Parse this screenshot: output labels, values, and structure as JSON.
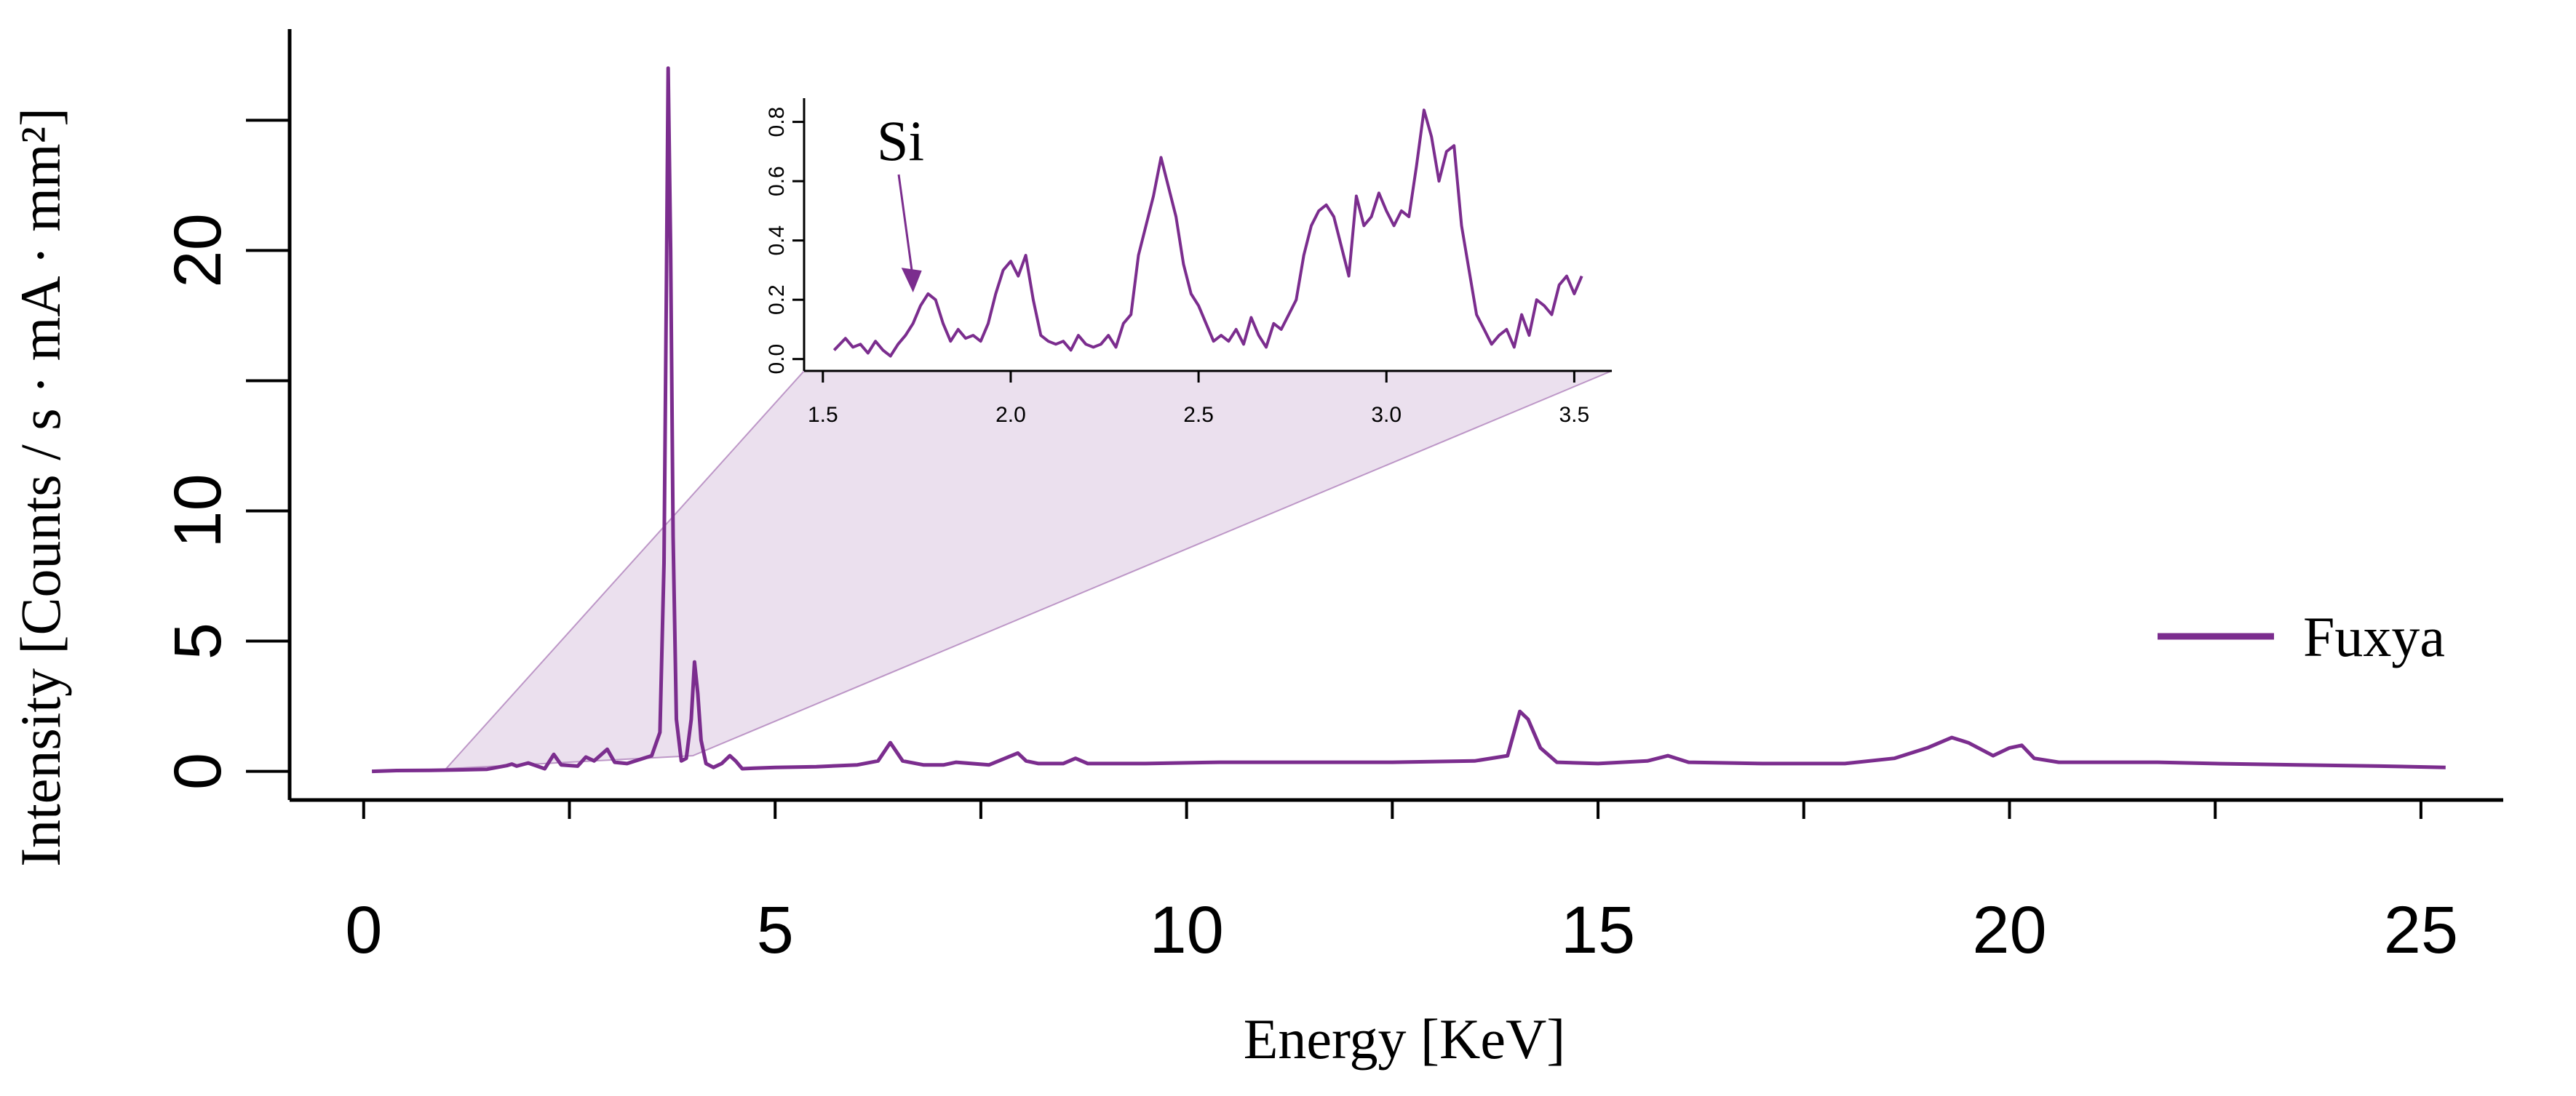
{
  "chart_data": [
    {
      "id": "main",
      "type": "line",
      "title": "",
      "xlabel": "Energy [KeV]",
      "ylabel": "Intensity [Counts / s · mA · mm²]",
      "xlim": [
        -0.9,
        26.0
      ],
      "ylim": [
        -1.1,
        28.5
      ],
      "xticks": [
        0,
        2.5,
        5,
        7.5,
        10,
        12.5,
        15,
        17.5,
        20,
        22.5,
        25
      ],
      "xtick_labels": [
        "0",
        "",
        "5",
        "",
        "10",
        "",
        "15",
        "",
        "20",
        "",
        "25"
      ],
      "yticks": [
        0,
        5,
        10,
        15,
        20,
        25
      ],
      "ytick_labels": [
        "0",
        "5",
        "10",
        "",
        "20",
        ""
      ],
      "grid": false,
      "legend": {
        "position": "right",
        "entries": [
          "Fuxya"
        ]
      },
      "series": [
        {
          "name": "Fuxya",
          "color": "#7b2d8e",
          "x": [
            0.1,
            0.4,
            0.8,
            1.2,
            1.5,
            1.74,
            1.8,
            1.86,
            2.0,
            2.2,
            2.31,
            2.4,
            2.6,
            2.7,
            2.8,
            2.96,
            3.05,
            3.2,
            3.35,
            3.5,
            3.6,
            3.65,
            3.68,
            3.7,
            3.73,
            3.76,
            3.8,
            3.86,
            3.92,
            3.98,
            4.02,
            4.06,
            4.1,
            4.16,
            4.25,
            4.35,
            4.45,
            4.52,
            4.6,
            4.75,
            5.0,
            5.5,
            6.0,
            6.25,
            6.4,
            6.55,
            6.8,
            7.05,
            7.2,
            7.6,
            7.95,
            8.05,
            8.2,
            8.5,
            8.65,
            8.8,
            9.5,
            10.4,
            10.6,
            11.5,
            12.5,
            13.5,
            13.9,
            14.05,
            14.15,
            14.3,
            14.5,
            15.0,
            15.6,
            15.85,
            16.1,
            17.0,
            18.0,
            18.6,
            19.0,
            19.3,
            19.5,
            19.8,
            20.0,
            20.15,
            20.3,
            20.6,
            21.0,
            21.8,
            22.5,
            23.5,
            24.5,
            25.3
          ],
          "y": [
            0.0,
            0.03,
            0.04,
            0.06,
            0.08,
            0.22,
            0.28,
            0.2,
            0.32,
            0.1,
            0.65,
            0.25,
            0.2,
            0.55,
            0.4,
            0.85,
            0.35,
            0.3,
            0.45,
            0.6,
            1.5,
            8.0,
            19.0,
            27.0,
            20.0,
            9.0,
            2.0,
            0.4,
            0.5,
            2.0,
            4.2,
            3.0,
            1.2,
            0.3,
            0.15,
            0.3,
            0.6,
            0.4,
            0.1,
            0.12,
            0.15,
            0.18,
            0.25,
            0.4,
            1.1,
            0.4,
            0.25,
            0.25,
            0.35,
            0.25,
            0.7,
            0.4,
            0.3,
            0.3,
            0.5,
            0.3,
            0.3,
            0.35,
            0.35,
            0.35,
            0.35,
            0.4,
            0.6,
            2.3,
            2.0,
            0.9,
            0.35,
            0.3,
            0.4,
            0.6,
            0.35,
            0.3,
            0.3,
            0.5,
            0.9,
            1.3,
            1.1,
            0.6,
            0.9,
            1.0,
            0.5,
            0.35,
            0.35,
            0.35,
            0.3,
            0.25,
            0.2,
            0.15
          ]
        }
      ]
    },
    {
      "id": "inset",
      "type": "line",
      "title": "",
      "xlabel": "",
      "ylabel": "",
      "xlim": [
        1.45,
        3.6
      ],
      "ylim": [
        -0.04,
        0.88
      ],
      "xticks": [
        1.5,
        2.0,
        2.5,
        3.0,
        3.5
      ],
      "xtick_labels": [
        "1.5",
        "2.0",
        "2.5",
        "3.0",
        "3.5"
      ],
      "yticks": [
        0.0,
        0.2,
        0.4,
        0.6,
        0.8
      ],
      "ytick_labels": [
        "0.0",
        "0.2",
        "0.4",
        "0.6",
        "0.8"
      ],
      "grid": false,
      "zoom_range_main_x": [
        1.0,
        4.0
      ],
      "annotation": {
        "text": "Si",
        "arrow_to": [
          1.74,
          0.2
        ]
      },
      "series": [
        {
          "name": "Fuxya",
          "color": "#7b2d8e",
          "x": [
            1.53,
            1.56,
            1.58,
            1.6,
            1.62,
            1.64,
            1.66,
            1.68,
            1.7,
            1.72,
            1.74,
            1.76,
            1.78,
            1.8,
            1.82,
            1.84,
            1.86,
            1.88,
            1.9,
            1.92,
            1.94,
            1.96,
            1.98,
            2.0,
            2.02,
            2.04,
            2.06,
            2.08,
            2.1,
            2.12,
            2.14,
            2.16,
            2.18,
            2.2,
            2.22,
            2.24,
            2.26,
            2.28,
            2.3,
            2.32,
            2.34,
            2.36,
            2.38,
            2.4,
            2.42,
            2.44,
            2.46,
            2.48,
            2.5,
            2.52,
            2.54,
            2.56,
            2.58,
            2.6,
            2.62,
            2.64,
            2.66,
            2.68,
            2.7,
            2.72,
            2.74,
            2.76,
            2.78,
            2.8,
            2.82,
            2.84,
            2.86,
            2.88,
            2.9,
            2.92,
            2.94,
            2.96,
            2.98,
            3.0,
            3.02,
            3.04,
            3.06,
            3.08,
            3.1,
            3.12,
            3.14,
            3.16,
            3.18,
            3.2,
            3.22,
            3.24,
            3.26,
            3.28,
            3.3,
            3.32,
            3.34,
            3.36,
            3.38,
            3.4,
            3.42,
            3.44,
            3.46,
            3.48,
            3.5,
            3.52
          ],
          "y": [
            0.03,
            0.07,
            0.04,
            0.05,
            0.02,
            0.06,
            0.03,
            0.01,
            0.05,
            0.08,
            0.12,
            0.18,
            0.22,
            0.2,
            0.12,
            0.06,
            0.1,
            0.07,
            0.08,
            0.06,
            0.12,
            0.22,
            0.3,
            0.33,
            0.28,
            0.35,
            0.2,
            0.08,
            0.06,
            0.05,
            0.06,
            0.03,
            0.08,
            0.05,
            0.04,
            0.05,
            0.08,
            0.04,
            0.12,
            0.15,
            0.35,
            0.45,
            0.55,
            0.68,
            0.58,
            0.48,
            0.32,
            0.22,
            0.18,
            0.12,
            0.06,
            0.08,
            0.06,
            0.1,
            0.05,
            0.14,
            0.08,
            0.04,
            0.12,
            0.1,
            0.15,
            0.2,
            0.35,
            0.45,
            0.5,
            0.52,
            0.48,
            0.38,
            0.28,
            0.55,
            0.45,
            0.48,
            0.56,
            0.5,
            0.45,
            0.5,
            0.48,
            0.65,
            0.84,
            0.75,
            0.6,
            0.7,
            0.72,
            0.45,
            0.3,
            0.15,
            0.1,
            0.05,
            0.08,
            0.1,
            0.04,
            0.15,
            0.08,
            0.2,
            0.18,
            0.15,
            0.25,
            0.28,
            0.22,
            0.28
          ],
          "y_extended_note": ""
        }
      ]
    }
  ]
}
